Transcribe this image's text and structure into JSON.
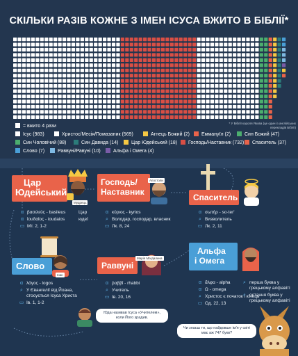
{
  "title": "СКІЛЬКИ РАЗІВ КОЖНЕ З ІМЕН ІСУСА ВЖИТО В БІБЛІЇ*",
  "footnote": "* У Біблії короля Якова (це один із англійських перекладів Біблії)",
  "legend": {
    "unit": "= вжито 4 рази",
    "items": [
      {
        "label": "Ісус (983)",
        "color": "#ffffff",
        "count": 983
      },
      {
        "label": "Христос/Месія/Помазаник (569)",
        "color": "#ffffff",
        "count": 569
      },
      {
        "label": "Агнець Божий (2)",
        "color": "#f5c843",
        "count": 2
      },
      {
        "label": "Еммануїл (2)",
        "color": "#e9634a",
        "count": 2
      },
      {
        "label": "Син Божий (47)",
        "color": "#4cae6e",
        "count": 47
      },
      {
        "label": "Син Чоловічий (88)",
        "color": "#4cae6e",
        "count": 88
      },
      {
        "label": "Син Давида (14)",
        "color": "#2c7c7a",
        "count": 14
      },
      {
        "label": "Цар Юдейський (18)",
        "color": "#f5c843",
        "count": 18
      },
      {
        "label": "Господь/Наставник (732)",
        "color": "#d94f45",
        "count": 732
      },
      {
        "label": "Спаситель (37)",
        "color": "#e9634a",
        "count": 37
      },
      {
        "label": "Слово (7)",
        "color": "#4a9fd7",
        "count": 7
      },
      {
        "label": "Раввуні/Равуні (10)",
        "color": "#7fb9e3",
        "count": 10
      },
      {
        "label": "Альфа і Омега (4)",
        "color": "#7a5ca8",
        "count": 4
      }
    ]
  },
  "cards": {
    "king": {
      "title1": "Цар",
      "title2": "Юдейський",
      "person": "Мудрець",
      "greek": "βασιλεύς - basileus",
      "greek2": "ἰουδαίος - ioudaios",
      "meaning": "Цар",
      "meaning2": "юдеї",
      "ref": "Мт. 2, 1-2"
    },
    "lord": {
      "title1": "Господь/",
      "title2": "Наставник",
      "person": "Апостоли",
      "greek": "κύριος - kyrios",
      "meaning": "Володар, господар, власник",
      "ref": "Лк. 8, 24"
    },
    "saviour": {
      "title1": "Спаситель",
      "greek": "σωτήρ - so·ter'",
      "meaning": "Визволитель",
      "ref": "Лк. 2, 11"
    },
    "word": {
      "title1": "Слово",
      "person": "Іоан",
      "greek": "λόγος - logos",
      "meaning": "У Євангелії від Йоана, стосується Ісуса Христа",
      "ref": "Ів. 1, 1-2"
    },
    "rabboni": {
      "title1": "Раввуні",
      "person": "Марія Магдалина",
      "greek": "ῥαββί - rhabbi",
      "meaning": "Учитель",
      "ref": "Ів. 20, 16"
    },
    "alpha": {
      "title1": "Альфа",
      "title2": "і Омега",
      "greek": "ἄλφα - alpha",
      "greek_meaning": "перша буква у грецькому алфавіті",
      "greek2": "Ω - omega",
      "greek2_meaning": "остання буква у грецькому алфавіті",
      "meaning": "Христос є початок і кінець",
      "ref": "Од. 22, 13"
    }
  },
  "bubble_left": "Юда називав Ісуса «Учителем», коли Його зрадив.",
  "bubble_right": "Чи знаєш ти, що найдовше ім'я у світі має аж 747 букв?"
}
